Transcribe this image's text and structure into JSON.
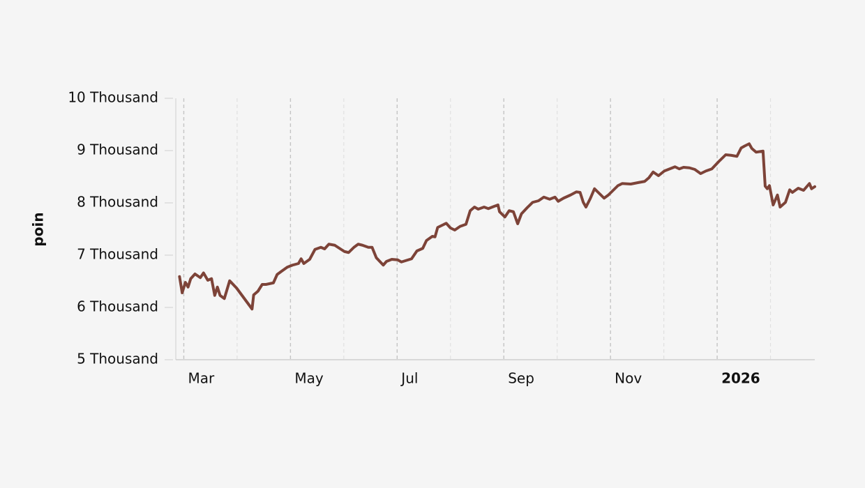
{
  "chart_data": {
    "type": "line",
    "ylabel": "poin",
    "color": "#7d4338",
    "grid": true,
    "xlim": [
      1.85,
      13.83
    ],
    "ylim": [
      5000,
      10000
    ],
    "yticks": [
      {
        "value": 5000,
        "label": "5 Thousand"
      },
      {
        "value": 6000,
        "label": "6 Thousand"
      },
      {
        "value": 7000,
        "label": "7 Thousand"
      },
      {
        "value": 8000,
        "label": "8 Thousand"
      },
      {
        "value": 9000,
        "label": "9 Thousand"
      },
      {
        "value": 10000,
        "label": "10 Thousand"
      }
    ],
    "xticks": [
      {
        "value": 2,
        "label": "Mar"
      },
      {
        "value": 4,
        "label": "May"
      },
      {
        "value": 6,
        "label": "Jul"
      },
      {
        "value": 8,
        "label": "Sep"
      },
      {
        "value": 10,
        "label": "Nov"
      },
      {
        "value": 12,
        "label": "2026"
      }
    ],
    "minor_xticks": [
      3,
      5,
      7,
      9,
      11,
      13
    ],
    "x": [
      1.92,
      1.97,
      2.03,
      2.08,
      2.13,
      2.21,
      2.31,
      2.37,
      2.45,
      2.52,
      2.58,
      2.63,
      2.68,
      2.76,
      2.86,
      2.99,
      3.28,
      3.31,
      3.39,
      3.47,
      3.54,
      3.68,
      3.75,
      3.83,
      3.94,
      4.04,
      4.15,
      4.2,
      4.25,
      4.36,
      4.46,
      4.57,
      4.64,
      4.72,
      4.83,
      5.01,
      5.09,
      5.19,
      5.27,
      5.35,
      5.46,
      5.53,
      5.61,
      5.74,
      5.8,
      5.9,
      6.01,
      6.08,
      6.27,
      6.37,
      6.48,
      6.55,
      6.66,
      6.71,
      6.76,
      6.84,
      6.92,
      7.0,
      7.08,
      7.18,
      7.29,
      7.37,
      7.45,
      7.52,
      7.63,
      7.71,
      7.81,
      7.89,
      7.92,
      8.02,
      8.1,
      8.18,
      8.26,
      8.33,
      8.44,
      8.54,
      8.65,
      8.75,
      8.86,
      8.96,
      9.02,
      9.12,
      9.25,
      9.36,
      9.43,
      9.49,
      9.54,
      9.62,
      9.7,
      9.77,
      9.88,
      9.96,
      10.04,
      10.14,
      10.22,
      10.38,
      10.53,
      10.64,
      10.72,
      10.8,
      10.9,
      11.01,
      11.11,
      11.21,
      11.29,
      11.37,
      11.48,
      11.58,
      11.69,
      11.79,
      11.9,
      12.03,
      12.16,
      12.26,
      12.37,
      12.45,
      12.52,
      12.6,
      12.65,
      12.73,
      12.86,
      12.9,
      12.94,
      12.98,
      13.05,
      13.13,
      13.18,
      13.28,
      13.36,
      13.41,
      13.52,
      13.62,
      13.73,
      13.77,
      13.83
    ],
    "values": [
      6590,
      6280,
      6480,
      6390,
      6550,
      6640,
      6570,
      6660,
      6520,
      6550,
      6230,
      6390,
      6230,
      6170,
      6510,
      6370,
      5970,
      6240,
      6310,
      6440,
      6440,
      6470,
      6630,
      6690,
      6770,
      6810,
      6840,
      6930,
      6840,
      6920,
      7110,
      7150,
      7120,
      7210,
      7190,
      7070,
      7050,
      7150,
      7210,
      7190,
      7150,
      7150,
      6950,
      6810,
      6880,
      6920,
      6910,
      6870,
      6930,
      7080,
      7130,
      7280,
      7360,
      7350,
      7530,
      7570,
      7610,
      7520,
      7480,
      7550,
      7590,
      7850,
      7920,
      7880,
      7920,
      7890,
      7930,
      7960,
      7830,
      7730,
      7850,
      7830,
      7600,
      7790,
      7910,
      8010,
      8040,
      8110,
      8070,
      8110,
      8030,
      8090,
      8150,
      8210,
      8200,
      8010,
      7920,
      8080,
      8270,
      8200,
      8090,
      8150,
      8230,
      8330,
      8370,
      8360,
      8390,
      8410,
      8480,
      8590,
      8520,
      8610,
      8650,
      8690,
      8650,
      8680,
      8670,
      8640,
      8560,
      8610,
      8650,
      8790,
      8920,
      8910,
      8890,
      9050,
      9090,
      9130,
      9040,
      8970,
      8990,
      8320,
      8270,
      8330,
      7960,
      8150,
      7920,
      8010,
      8250,
      8200,
      8280,
      8240,
      8370,
      8270,
      8310
    ]
  }
}
